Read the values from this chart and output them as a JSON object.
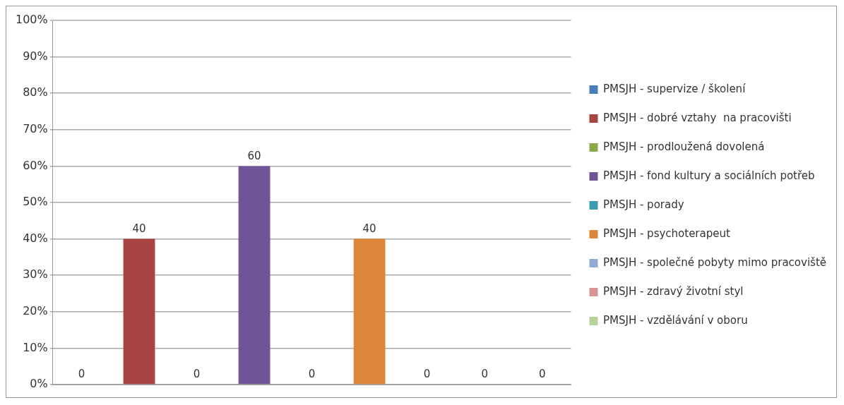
{
  "chart_data": {
    "type": "bar",
    "categories": [
      null,
      null,
      null,
      null,
      null,
      null,
      null,
      null,
      null
    ],
    "series": [
      {
        "name": "PMSJH - supervize / školení",
        "color": "#4a7ebb",
        "values": [
          0,
          null,
          null,
          null,
          null,
          null,
          null,
          null,
          null
        ]
      },
      {
        "name": "PMSJH - dobré vztahy  na pracovišti",
        "color": "#a94442",
        "values": [
          null,
          40,
          null,
          null,
          null,
          null,
          null,
          null,
          null
        ]
      },
      {
        "name": "PMSJH - prodloužená dovolená",
        "color": "#8aaa4a",
        "values": [
          null,
          null,
          0,
          null,
          null,
          null,
          null,
          null,
          null
        ]
      },
      {
        "name": "PMSJH - fond kultury a sociálních potřeb",
        "color": "#6f5497",
        "values": [
          null,
          null,
          null,
          60,
          null,
          null,
          null,
          null,
          null
        ]
      },
      {
        "name": "PMSJH - porady",
        "color": "#3c9bb4",
        "values": [
          null,
          null,
          null,
          null,
          0,
          null,
          null,
          null,
          null
        ]
      },
      {
        "name": "PMSJH - psychoterapeut",
        "color": "#dd853a",
        "values": [
          null,
          null,
          null,
          null,
          null,
          40,
          null,
          null,
          null
        ]
      },
      {
        "name": "PMSJH - společné pobyty mimo pracoviště",
        "color": "#93a9d6",
        "values": [
          null,
          null,
          null,
          null,
          null,
          null,
          0,
          null,
          null
        ]
      },
      {
        "name": "PMSJH - zdravý životní styl",
        "color": "#d99594",
        "values": [
          null,
          null,
          null,
          null,
          null,
          null,
          null,
          0,
          null
        ]
      },
      {
        "name": "PMSJH - vzdělávání v oboru",
        "color": "#b6d39a",
        "values": [
          null,
          null,
          null,
          null,
          null,
          null,
          null,
          null,
          0
        ]
      }
    ],
    "ylim": [
      0,
      100
    ],
    "yticks": [
      {
        "value": 0,
        "label": "0%"
      },
      {
        "value": 10,
        "label": "10%"
      },
      {
        "value": 20,
        "label": "20%"
      },
      {
        "value": 30,
        "label": "30%"
      },
      {
        "value": 40,
        "label": "40%"
      },
      {
        "value": 50,
        "label": "50%"
      },
      {
        "value": 60,
        "label": "60%"
      },
      {
        "value": 70,
        "label": "70%"
      },
      {
        "value": 80,
        "label": "80%"
      },
      {
        "value": 90,
        "label": "90%"
      },
      {
        "value": 100,
        "label": "100%"
      }
    ],
    "grid": "y",
    "legend": "right",
    "data_labels": true
  }
}
